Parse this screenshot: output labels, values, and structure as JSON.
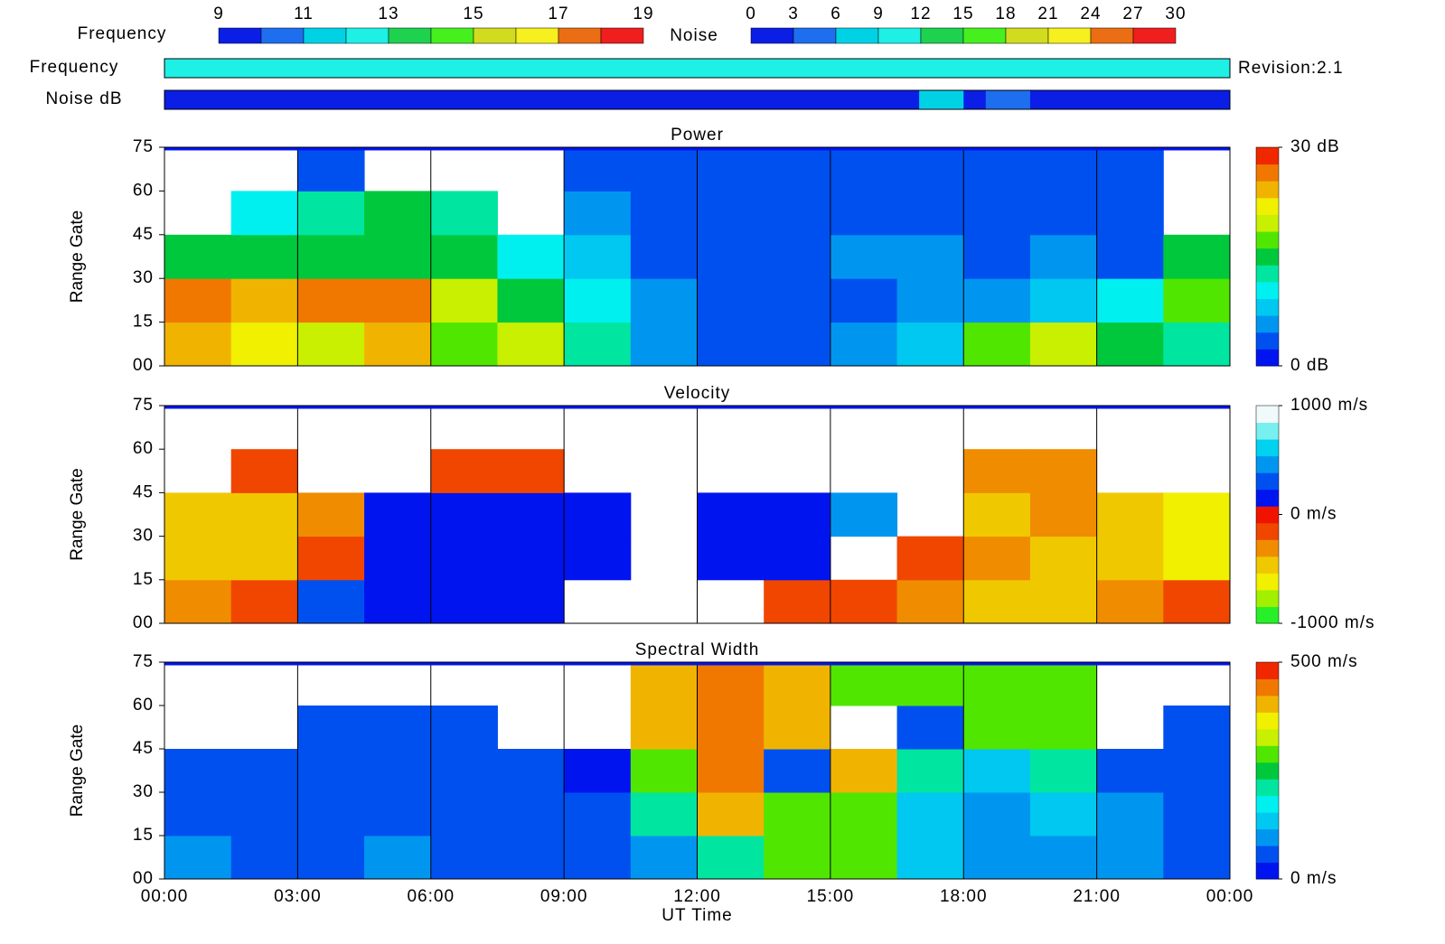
{
  "chart_data": [
    {
      "type": "strip",
      "label": "Frequency",
      "legend_label": "Frequency",
      "annotation": "Revision:2.1",
      "legend_ticks": [
        9,
        11,
        13,
        15,
        17,
        19
      ],
      "lim": [
        9,
        19
      ],
      "xlim": [
        0,
        24
      ],
      "palette": [
        "#0a1ee6",
        "#1e6ef0",
        "#00d2e6",
        "#1ef0e6",
        "#1ed250",
        "#46f01e",
        "#d2dc1e",
        "#f5f01e",
        "#eb6e14",
        "#f01e1e"
      ],
      "values": [
        12
      ]
    },
    {
      "type": "strip",
      "label": "Noise dB",
      "legend_label": "Noise",
      "legend_ticks": [
        0,
        3,
        6,
        9,
        12,
        15,
        18,
        21,
        24,
        27,
        30
      ],
      "lim": [
        0,
        30
      ],
      "xlim": [
        0,
        24
      ],
      "palette": [
        "#0a1ee6",
        "#1e6ef0",
        "#00d2e6",
        "#1ef0e6",
        "#1ed250",
        "#46f01e",
        "#d2dc1e",
        "#f5f01e",
        "#eb6e14",
        "#f01e1e"
      ],
      "values": [
        1,
        1,
        1,
        1,
        1,
        1,
        1,
        1,
        1,
        1,
        1,
        1,
        1,
        1,
        1,
        1,
        1,
        1,
        1,
        1,
        1,
        1,
        1,
        1,
        1,
        1,
        1,
        1,
        1,
        1,
        1,
        1,
        1,
        1,
        7,
        6,
        1,
        4,
        4,
        1,
        1,
        1,
        1,
        1,
        1,
        1,
        1,
        1
      ]
    },
    {
      "type": "heatmap",
      "title": "Power",
      "ylabel": "Range Gate",
      "time_bins": [
        0,
        1.5,
        3,
        4.5,
        6,
        7.5,
        9,
        10.5,
        12,
        13.5,
        15,
        16.5,
        18,
        19.5,
        21,
        22.5,
        24
      ],
      "range_bins": [
        0,
        15,
        30,
        45,
        60,
        75
      ],
      "xlim": [
        0,
        24
      ],
      "ylim": [
        0,
        75
      ],
      "xticks": [
        {
          "value": 0,
          "label": "00:00"
        },
        {
          "value": 3,
          "label": "03:00"
        },
        {
          "value": 6,
          "label": "06:00"
        },
        {
          "value": 9,
          "label": "09:00"
        },
        {
          "value": 12,
          "label": "12:00"
        },
        {
          "value": 15,
          "label": "15:00"
        },
        {
          "value": 18,
          "label": "18:00"
        },
        {
          "value": 21,
          "label": "21:00"
        },
        {
          "value": 24,
          "label": "00:00"
        }
      ],
      "yticks": [
        {
          "value": 0,
          "label": "00"
        },
        15,
        30,
        45,
        60,
        75
      ],
      "clim": [
        0,
        30
      ],
      "cticks": [
        {
          "value": 30,
          "label": "30 dB"
        },
        {
          "value": 0,
          "label": "0 dB"
        }
      ],
      "palette": [
        "#0014f0",
        "#0050f0",
        "#0096f0",
        "#00c8f0",
        "#00f0f0",
        "#00e6a0",
        "#00c83c",
        "#50e600",
        "#c8f000",
        "#f0f000",
        "#f0b400",
        "#f07800",
        "#f02800"
      ],
      "values": [
        [
          24,
          22,
          20,
          24,
          18,
          20,
          12,
          6,
          4,
          4,
          5,
          8,
          18,
          20,
          16,
          12
        ],
        [
          26,
          24,
          26,
          26,
          20,
          14,
          10,
          5,
          4,
          3,
          4,
          6,
          6,
          8,
          10,
          18
        ],
        [
          14,
          14,
          16,
          14,
          14,
          10,
          8,
          4,
          3,
          3,
          6,
          5,
          4,
          5,
          4,
          14
        ],
        [
          null,
          10,
          12,
          14,
          12,
          null,
          6,
          3,
          3,
          3,
          4,
          4,
          3,
          4,
          3,
          null
        ],
        [
          null,
          null,
          4,
          null,
          null,
          null,
          3,
          3,
          3,
          3,
          3,
          3,
          3,
          3,
          3,
          null
        ]
      ]
    },
    {
      "type": "heatmap",
      "title": "Velocity",
      "ylabel": "Range Gate",
      "time_bins": [
        0,
        1.5,
        3,
        4.5,
        6,
        7.5,
        9,
        10.5,
        12,
        13.5,
        15,
        16.5,
        18,
        19.5,
        21,
        22.5,
        24
      ],
      "range_bins": [
        0,
        15,
        30,
        45,
        60,
        75
      ],
      "xlim": [
        0,
        24
      ],
      "ylim": [
        0,
        75
      ],
      "xticks": [
        {
          "value": 0,
          "label": "00:00"
        },
        {
          "value": 3,
          "label": "03:00"
        },
        {
          "value": 6,
          "label": "06:00"
        },
        {
          "value": 9,
          "label": "09:00"
        },
        {
          "value": 12,
          "label": "12:00"
        },
        {
          "value": 15,
          "label": "15:00"
        },
        {
          "value": 18,
          "label": "18:00"
        },
        {
          "value": 21,
          "label": "21:00"
        },
        {
          "value": 24,
          "label": "00:00"
        }
      ],
      "yticks": [
        {
          "value": 0,
          "label": "00"
        },
        15,
        30,
        45,
        60,
        75
      ],
      "clim": [
        -1000,
        1000
      ],
      "cticks": [
        {
          "value": 1000,
          "label": "1000 m/s"
        },
        {
          "value": 0,
          "label": "0 m/s"
        },
        {
          "value": -1000,
          "label": "-1000 m/s"
        }
      ],
      "palette": [
        "#28f028",
        "#a0f000",
        "#f0f000",
        "#f0c800",
        "#f08c00",
        "#f04600",
        "#f01400",
        "#0014f0",
        "#0050f0",
        "#0096f0",
        "#00d2f0",
        "#78f0f0",
        "#f0fafa"
      ],
      "values": [
        [
          -300,
          -200,
          300,
          200,
          200,
          200,
          null,
          null,
          null,
          -200,
          -200,
          -300,
          -400,
          -400,
          -300,
          -200
        ],
        [
          -500,
          -500,
          -200,
          200,
          100,
          150,
          150,
          null,
          100,
          150,
          null,
          -200,
          -300,
          -400,
          -500,
          -600
        ],
        [
          -500,
          -500,
          -300,
          200,
          100,
          150,
          200,
          null,
          150,
          100,
          400,
          null,
          -400,
          -300,
          -500,
          -600
        ],
        [
          null,
          -200,
          null,
          null,
          -200,
          -200,
          null,
          null,
          null,
          null,
          null,
          null,
          -300,
          -300,
          null,
          null
        ],
        [
          null,
          null,
          null,
          null,
          null,
          null,
          null,
          null,
          null,
          null,
          null,
          null,
          null,
          null,
          null,
          null
        ]
      ]
    },
    {
      "type": "heatmap",
      "title": "Spectral Width",
      "ylabel": "Range Gate",
      "xlabel": "UT Time",
      "time_bins": [
        0,
        1.5,
        3,
        4.5,
        6,
        7.5,
        9,
        10.5,
        12,
        13.5,
        15,
        16.5,
        18,
        19.5,
        21,
        22.5,
        24
      ],
      "range_bins": [
        0,
        15,
        30,
        45,
        60,
        75
      ],
      "xlim": [
        0,
        24
      ],
      "ylim": [
        0,
        75
      ],
      "xticks": [
        {
          "value": 0,
          "label": "00:00"
        },
        {
          "value": 3,
          "label": "03:00"
        },
        {
          "value": 6,
          "label": "06:00"
        },
        {
          "value": 9,
          "label": "09:00"
        },
        {
          "value": 12,
          "label": "12:00"
        },
        {
          "value": 15,
          "label": "15:00"
        },
        {
          "value": 18,
          "label": "18:00"
        },
        {
          "value": 21,
          "label": "21:00"
        },
        {
          "value": 24,
          "label": "00:00"
        }
      ],
      "yticks": [
        {
          "value": 0,
          "label": "00"
        },
        15,
        30,
        45,
        60,
        75
      ],
      "clim": [
        0,
        500
      ],
      "cticks": [
        {
          "value": 500,
          "label": "500 m/s"
        },
        {
          "value": 0,
          "label": "0 m/s"
        }
      ],
      "palette": [
        "#0014f0",
        "#0050f0",
        "#0096f0",
        "#00c8f0",
        "#00f0f0",
        "#00e6a0",
        "#00c83c",
        "#50e600",
        "#c8f000",
        "#f0f000",
        "#f0b400",
        "#f07800",
        "#f02800"
      ],
      "values": [
        [
          100,
          60,
          60,
          80,
          60,
          50,
          40,
          100,
          200,
          300,
          300,
          120,
          100,
          80,
          80,
          60
        ],
        [
          40,
          40,
          40,
          40,
          40,
          40,
          40,
          200,
          400,
          300,
          300,
          150,
          100,
          120,
          80,
          50
        ],
        [
          40,
          40,
          40,
          40,
          40,
          40,
          30,
          300,
          450,
          60,
          400,
          200,
          150,
          200,
          60,
          40
        ],
        [
          null,
          null,
          60,
          50,
          60,
          null,
          null,
          400,
          450,
          400,
          null,
          60,
          300,
          300,
          null,
          50
        ],
        [
          null,
          null,
          null,
          null,
          null,
          null,
          null,
          400,
          450,
          400,
          300,
          300,
          300,
          300,
          null,
          null
        ]
      ]
    }
  ]
}
